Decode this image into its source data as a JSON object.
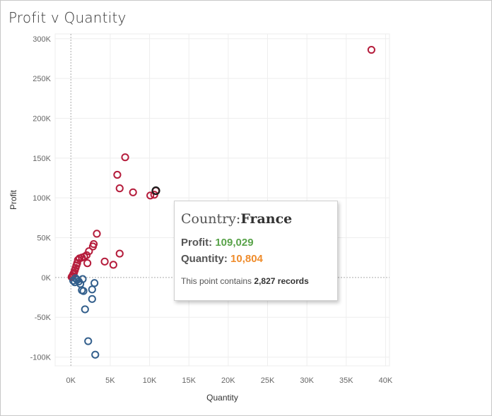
{
  "title": "Profit v Quantity",
  "colors": {
    "positive": "#b51d3c",
    "negative": "#335f8c",
    "highlight": "#1e1e1e",
    "profit_value": "#59a34a",
    "quantity_value": "#ef8c2c"
  },
  "chart_data": {
    "type": "scatter",
    "xlabel": "Quantity",
    "ylabel": "Profit",
    "xlim": [
      -2000,
      40500
    ],
    "ylim": [
      -111000,
      306000
    ],
    "x_ticks": [
      0,
      5000,
      10000,
      15000,
      20000,
      25000,
      30000,
      35000,
      40000
    ],
    "x_tick_labels": [
      "0K",
      "5K",
      "10K",
      "15K",
      "20K",
      "25K",
      "30K",
      "35K",
      "40K"
    ],
    "y_ticks": [
      -100000,
      -50000,
      0,
      50000,
      100000,
      150000,
      200000,
      250000,
      300000
    ],
    "y_tick_labels": [
      "-100K",
      "-50K",
      "0K",
      "50K",
      "100K",
      "150K",
      "200K",
      "250K",
      "300K"
    ],
    "grid": true,
    "marker": "hollow circle",
    "color_rule": "red for positive profit, blue for negative profit",
    "points": [
      [
        38200,
        286000
      ],
      [
        6900,
        151000
      ],
      [
        5900,
        129000
      ],
      [
        6200,
        112000
      ],
      [
        7900,
        107000
      ],
      [
        10100,
        103000
      ],
      [
        10600,
        104000
      ],
      [
        10800,
        109000
      ],
      [
        3300,
        55000
      ],
      [
        6200,
        30000
      ],
      [
        4300,
        20000
      ],
      [
        5400,
        16000
      ],
      [
        2900,
        42000
      ],
      [
        2800,
        39000
      ],
      [
        2300,
        33000
      ],
      [
        2000,
        28000
      ],
      [
        2100,
        18000
      ],
      [
        1700,
        26000
      ],
      [
        1400,
        25000
      ],
      [
        1100,
        24000
      ],
      [
        900,
        22000
      ],
      [
        800,
        18000
      ],
      [
        700,
        15000
      ],
      [
        600,
        12000
      ],
      [
        500,
        9000
      ],
      [
        400,
        6000
      ],
      [
        300,
        4000
      ],
      [
        200,
        2000
      ],
      [
        150,
        1000
      ],
      [
        100,
        500
      ],
      [
        600,
        -1000
      ],
      [
        800,
        -3000
      ],
      [
        1000,
        -5000
      ],
      [
        1200,
        -8000
      ],
      [
        300,
        -4000
      ],
      [
        500,
        -6000
      ],
      [
        1500,
        -2000
      ],
      [
        1600,
        -17000
      ],
      [
        1400,
        -16000
      ],
      [
        1800,
        -40000
      ],
      [
        2700,
        -15000
      ],
      [
        2700,
        -27000
      ],
      [
        3000,
        -7000
      ],
      [
        2200,
        -80000
      ],
      [
        3100,
        -97000
      ]
    ],
    "highlighted_point": {
      "country": "France",
      "x": 10804,
      "y": 109029
    }
  },
  "tooltip": {
    "country_label": "Country:",
    "country_value": "France",
    "profit_label": "Profit:",
    "profit_value": "109,029",
    "quantity_label": "Quantity:",
    "quantity_value": "10,804",
    "records_prefix": "This point contains",
    "records_value": "2,827 records"
  }
}
